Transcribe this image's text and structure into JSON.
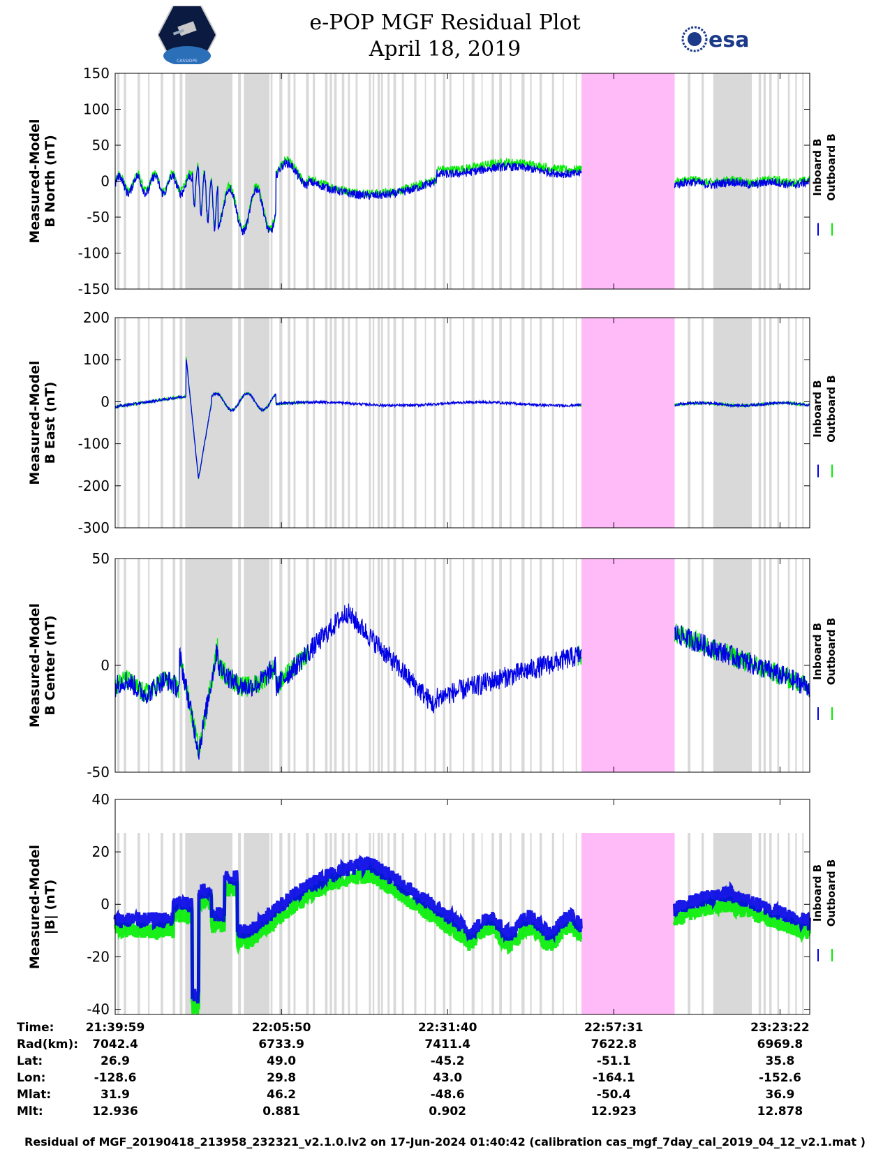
{
  "title_line1": "e-POP MGF Residual Plot",
  "title_line2": "April 18, 2019",
  "logos": {
    "left": "CASSIOPE",
    "right": "esa"
  },
  "colors": {
    "inboard": "#0000e6",
    "outboard": "#00ee00",
    "gray_band": "#d9d9d9",
    "gap_band": "#ffbbf7",
    "axis": "#000000"
  },
  "chart_data": [
    {
      "type": "line",
      "ylabel_line1": "Measured-Model",
      "ylabel_line2": "B North (nT)",
      "ylim": [
        -150,
        150
      ],
      "yticks": [
        150,
        100,
        50,
        0,
        -50,
        -100,
        -150
      ],
      "yticklabels": [
        "150",
        "100",
        "50",
        "0",
        "-50",
        "-100",
        "-150"
      ],
      "legend": [
        "Inboard B",
        "Outboard B"
      ],
      "series": [
        {
          "name": "Inboard B",
          "color": "#0000e6"
        },
        {
          "name": "Outboard B",
          "color": "#00ee00"
        }
      ]
    },
    {
      "type": "line",
      "ylabel_line1": "Measured-Model",
      "ylabel_line2": "B East (nT)",
      "ylim": [
        -300,
        200
      ],
      "yticks": [
        200,
        100,
        0,
        -100,
        -200,
        -300
      ],
      "yticklabels": [
        "200",
        "100",
        "0",
        "-100",
        "-200",
        "-300"
      ],
      "legend": [
        "Inboard B",
        "Outboard B"
      ],
      "series": [
        {
          "name": "Inboard B",
          "color": "#0000e6"
        },
        {
          "name": "Outboard B",
          "color": "#00ee00"
        }
      ]
    },
    {
      "type": "line",
      "ylabel_line1": "Measured-Model",
      "ylabel_line2": "B Center (nT)",
      "ylim": [
        -50,
        50
      ],
      "yticks": [
        50,
        0,
        -50
      ],
      "yticklabels": [
        "50",
        "0",
        "-50"
      ],
      "legend": [
        "Inboard B",
        "Outboard B"
      ],
      "series": [
        {
          "name": "Inboard B",
          "color": "#0000e6"
        },
        {
          "name": "Outboard B",
          "color": "#00ee00"
        }
      ]
    },
    {
      "type": "line",
      "ylabel_line1": "Measured-Model",
      "ylabel_line2": "|B| (nT)",
      "ylim": [
        -42,
        40
      ],
      "yticks": [
        40,
        20,
        0,
        -20,
        -40
      ],
      "yticklabels": [
        "40",
        "20",
        "0",
        "-20",
        "-40"
      ],
      "legend": [
        "Inboard B",
        "Outboard B"
      ],
      "series": [
        {
          "name": "Inboard B",
          "color": "#0000e6"
        },
        {
          "name": "Outboard B",
          "color": "#00ee00"
        }
      ]
    }
  ],
  "x_axis": {
    "start": "21:39:59",
    "end": "23:28:00",
    "ticks_min": [
      0,
      25.85,
      51.68,
      77.53,
      103.38
    ],
    "gap_min": [
      72.5,
      87.0
    ],
    "dense_gray_min": [
      [
        11,
        18
      ],
      [
        20,
        24
      ],
      [
        93,
        99
      ]
    ]
  },
  "info_rows": [
    {
      "label": "Time:",
      "values": [
        "21:39:59",
        "22:05:50",
        "22:31:40",
        "22:57:31",
        "23:23:22"
      ]
    },
    {
      "label": "Rad(km):",
      "values": [
        "7042.4",
        "6733.9",
        "7411.4",
        "7622.8",
        "6969.8"
      ]
    },
    {
      "label": "Lat:",
      "values": [
        "26.9",
        "49.0",
        "-45.2",
        "-51.1",
        "35.8"
      ]
    },
    {
      "label": "Lon:",
      "values": [
        "-128.6",
        "29.8",
        "43.0",
        "-164.1",
        "-152.6"
      ]
    },
    {
      "label": "Mlat:",
      "values": [
        "31.9",
        "46.2",
        "-48.6",
        "-50.4",
        "36.9"
      ]
    },
    {
      "label": "Mlt:",
      "values": [
        "12.936",
        "0.881",
        "0.902",
        "12.923",
        "12.878"
      ]
    }
  ],
  "footer": "Residual of MGF_20190418_213958_232321_v2.1.0.lv2 on 17-Jun-2024 01:40:42 (calibration cas_mgf_7day_cal_2019_04_12_v2.1.mat )"
}
